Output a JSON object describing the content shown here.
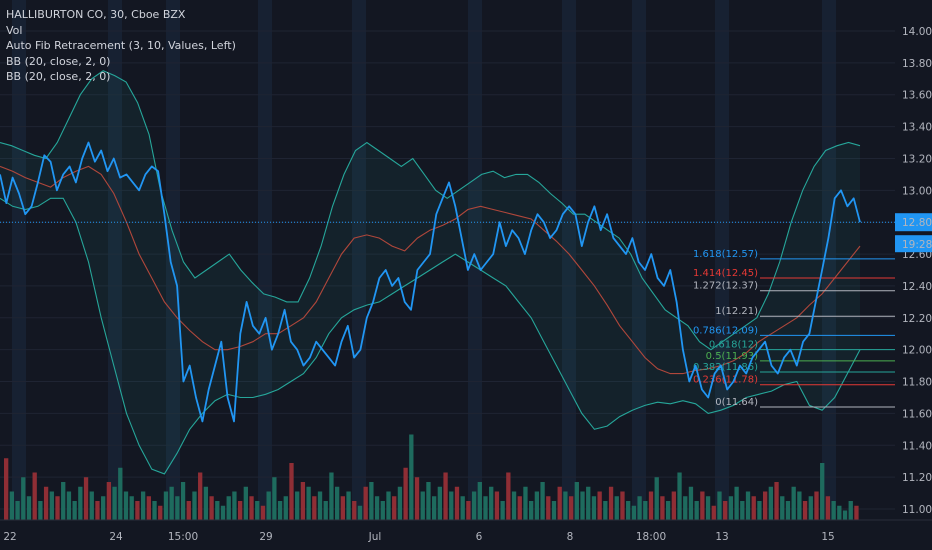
{
  "legend": {
    "symbol": "HALLIBURTON CO, 30, Cboe BZX",
    "vol": "Vol",
    "fib": "Auto Fib Retracement (3, 10, Values, Left)",
    "bb1": "BB (20, close, 2, 0)",
    "bb2": "BB (20, close, 2, 0)"
  },
  "price_badge": {
    "price": "12.80",
    "countdown": "19:28"
  },
  "colors": {
    "background": "#131722",
    "price_line": "#2196f3",
    "bb_band": "#26a69a",
    "bb_basis": "#b0473b",
    "vol_up": "#1e6b5e",
    "vol_down": "#8f2e35",
    "session_shade": "#1c2a40"
  },
  "chart_data": {
    "type": "line",
    "title": "HALLIBURTON CO, 30, Cboe BZX",
    "ylim": [
      10.95,
      14.1
    ],
    "y_ticks": [
      11.0,
      11.2,
      11.4,
      11.6,
      11.8,
      12.0,
      12.2,
      12.4,
      12.6,
      12.8,
      13.0,
      13.2,
      13.4,
      13.6,
      13.8,
      14.0
    ],
    "x_tick_labels": [
      "22",
      "24",
      "15:00",
      "29",
      "Jul",
      "6",
      "8",
      "18:00",
      "13",
      "15"
    ],
    "last_price": 12.8,
    "series": [
      {
        "name": "Close",
        "role": "price",
        "values": [
          13.1,
          12.92,
          13.08,
          12.98,
          12.85,
          12.9,
          13.05,
          13.22,
          13.18,
          13.0,
          13.1,
          13.15,
          13.05,
          13.2,
          13.3,
          13.18,
          13.25,
          13.12,
          13.2,
          13.08,
          13.1,
          13.05,
          13.0,
          13.1,
          13.15,
          13.12,
          12.85,
          12.55,
          12.4,
          11.8,
          11.9,
          11.7,
          11.55,
          11.75,
          11.9,
          12.05,
          11.7,
          11.55,
          12.1,
          12.3,
          12.15,
          12.1,
          12.2,
          12.0,
          12.1,
          12.25,
          12.05,
          12.0,
          11.9,
          11.95,
          12.05,
          12.0,
          11.95,
          11.9,
          12.05,
          12.15,
          11.95,
          12.0,
          12.2,
          12.3,
          12.45,
          12.5,
          12.4,
          12.45,
          12.3,
          12.25,
          12.5,
          12.55,
          12.6,
          12.85,
          12.95,
          13.05,
          12.9,
          12.7,
          12.5,
          12.6,
          12.5,
          12.55,
          12.6,
          12.8,
          12.65,
          12.75,
          12.7,
          12.6,
          12.75,
          12.85,
          12.8,
          12.7,
          12.75,
          12.85,
          12.9,
          12.85,
          12.65,
          12.8,
          12.9,
          12.75,
          12.85,
          12.7,
          12.65,
          12.6,
          12.7,
          12.55,
          12.5,
          12.6,
          12.45,
          12.4,
          12.5,
          12.3,
          12.0,
          11.8,
          11.9,
          11.75,
          11.7,
          11.85,
          11.9,
          11.75,
          11.8,
          11.9,
          11.85,
          11.95,
          12.0,
          12.05,
          11.9,
          11.85,
          11.95,
          12.0,
          11.9,
          12.05,
          12.1,
          12.3,
          12.5,
          12.7,
          12.95,
          13.0,
          12.9,
          12.95,
          12.8
        ],
        "values_unit": "USD"
      },
      {
        "name": "BB Upper",
        "role": "upper",
        "values": [
          13.3,
          13.28,
          13.25,
          13.22,
          13.2,
          13.3,
          13.45,
          13.6,
          13.7,
          13.75,
          13.72,
          13.68,
          13.55,
          13.35,
          13.0,
          12.75,
          12.55,
          12.45,
          12.5,
          12.55,
          12.6,
          12.5,
          12.42,
          12.35,
          12.33,
          12.3,
          12.3,
          12.45,
          12.65,
          12.9,
          13.1,
          13.25,
          13.3,
          13.25,
          13.2,
          13.15,
          13.2,
          13.1,
          13.0,
          12.95,
          13.0,
          13.05,
          13.1,
          13.12,
          13.08,
          13.1,
          13.1,
          13.05,
          12.98,
          12.92,
          12.85,
          12.85,
          12.8,
          12.75,
          12.7,
          12.6,
          12.45,
          12.35,
          12.25,
          12.2,
          12.15,
          12.05,
          12.0,
          12.05,
          12.1,
          12.15,
          12.2,
          12.35,
          12.55,
          12.8,
          13.0,
          13.15,
          13.25,
          13.28,
          13.3,
          13.28
        ],
        "values_unit": "USD"
      },
      {
        "name": "BB Basis",
        "role": "basis",
        "values": [
          13.15,
          13.12,
          13.08,
          13.05,
          13.02,
          13.08,
          13.12,
          13.15,
          13.1,
          12.98,
          12.8,
          12.6,
          12.45,
          12.3,
          12.2,
          12.12,
          12.05,
          12.0,
          12.0,
          12.02,
          12.05,
          12.1,
          12.1,
          12.15,
          12.2,
          12.3,
          12.45,
          12.6,
          12.7,
          12.72,
          12.7,
          12.65,
          12.62,
          12.7,
          12.75,
          12.78,
          12.82,
          12.88,
          12.9,
          12.88,
          12.86,
          12.84,
          12.82,
          12.75,
          12.68,
          12.6,
          12.5,
          12.4,
          12.28,
          12.15,
          12.05,
          11.95,
          11.88,
          11.85,
          11.85,
          11.87,
          11.88,
          11.9,
          11.93,
          11.98,
          12.05,
          12.1,
          12.15,
          12.2,
          12.28,
          12.35,
          12.45,
          12.55,
          12.65
        ],
        "values_unit": "USD"
      },
      {
        "name": "BB Lower",
        "role": "lower",
        "values": [
          12.95,
          12.9,
          12.88,
          12.9,
          12.95,
          12.95,
          12.8,
          12.55,
          12.2,
          11.9,
          11.6,
          11.4,
          11.25,
          11.22,
          11.35,
          11.5,
          11.6,
          11.68,
          11.72,
          11.7,
          11.7,
          11.72,
          11.75,
          11.8,
          11.85,
          11.95,
          12.1,
          12.2,
          12.25,
          12.28,
          12.3,
          12.35,
          12.4,
          12.45,
          12.5,
          12.55,
          12.6,
          12.55,
          12.5,
          12.45,
          12.4,
          12.3,
          12.2,
          12.05,
          11.9,
          11.75,
          11.6,
          11.5,
          11.52,
          11.58,
          11.62,
          11.65,
          11.67,
          11.66,
          11.68,
          11.66,
          11.6,
          11.62,
          11.65,
          11.7,
          11.72,
          11.74,
          11.78,
          11.8,
          11.65,
          11.62,
          11.7,
          11.85,
          12.0
        ],
        "values_unit": "USD"
      }
    ],
    "fib_levels": [
      {
        "label": "1.618(12.57)",
        "value": 12.57,
        "color": "#2196f3"
      },
      {
        "label": "1.414(12.45)",
        "value": 12.45,
        "color": "#e53935"
      },
      {
        "label": "1.272(12.37)",
        "value": 12.37,
        "color": "#b2b5be"
      },
      {
        "label": "1(12.21)",
        "value": 12.21,
        "color": "#b2b5be"
      },
      {
        "label": "0.786(12.09)",
        "value": 12.09,
        "color": "#2196f3"
      },
      {
        "label": "0.618(12)",
        "value": 12.0,
        "color": "#26a69a"
      },
      {
        "label": "0.5(11.93)",
        "value": 11.93,
        "color": "#4caf50"
      },
      {
        "label": "0.382(11.86)",
        "value": 11.86,
        "color": "#26a69a"
      },
      {
        "label": "0.236(11.78)",
        "value": 11.78,
        "color": "#e53935"
      },
      {
        "label": "0(11.64)",
        "value": 11.64,
        "color": "#b2b5be"
      }
    ],
    "volume": [
      0.65,
      0.3,
      0.2,
      0.45,
      0.25,
      0.5,
      0.2,
      0.35,
      0.3,
      0.25,
      0.4,
      0.3,
      0.2,
      0.35,
      0.45,
      0.3,
      0.2,
      0.25,
      0.4,
      0.35,
      0.55,
      0.3,
      0.25,
      0.2,
      0.3,
      0.25,
      0.2,
      0.15,
      0.3,
      0.35,
      0.25,
      0.4,
      0.2,
      0.3,
      0.5,
      0.35,
      0.25,
      0.2,
      0.15,
      0.25,
      0.3,
      0.2,
      0.35,
      0.25,
      0.2,
      0.15,
      0.3,
      0.45,
      0.2,
      0.25,
      0.6,
      0.3,
      0.4,
      0.35,
      0.25,
      0.3,
      0.2,
      0.5,
      0.35,
      0.25,
      0.3,
      0.2,
      0.15,
      0.35,
      0.4,
      0.25,
      0.2,
      0.3,
      0.25,
      0.35,
      0.55,
      0.9,
      0.45,
      0.3,
      0.4,
      0.25,
      0.35,
      0.5,
      0.3,
      0.35,
      0.25,
      0.2,
      0.3,
      0.4,
      0.25,
      0.35,
      0.3,
      0.2,
      0.5,
      0.3,
      0.25,
      0.35,
      0.2,
      0.3,
      0.4,
      0.25,
      0.2,
      0.35,
      0.3,
      0.25,
      0.4,
      0.3,
      0.35,
      0.25,
      0.3,
      0.2,
      0.35,
      0.25,
      0.3,
      0.2,
      0.15,
      0.25,
      0.2,
      0.3,
      0.45,
      0.25,
      0.2,
      0.3,
      0.5,
      0.25,
      0.35,
      0.2,
      0.3,
      0.25,
      0.15,
      0.3,
      0.2,
      0.25,
      0.35,
      0.2,
      0.3,
      0.25,
      0.2,
      0.3,
      0.35,
      0.4,
      0.25,
      0.2,
      0.35,
      0.3,
      0.2,
      0.25,
      0.3,
      0.6,
      0.25,
      0.2,
      0.15,
      0.1,
      0.2,
      0.15
    ],
    "volume_directions": "alternating up/down by price move"
  }
}
